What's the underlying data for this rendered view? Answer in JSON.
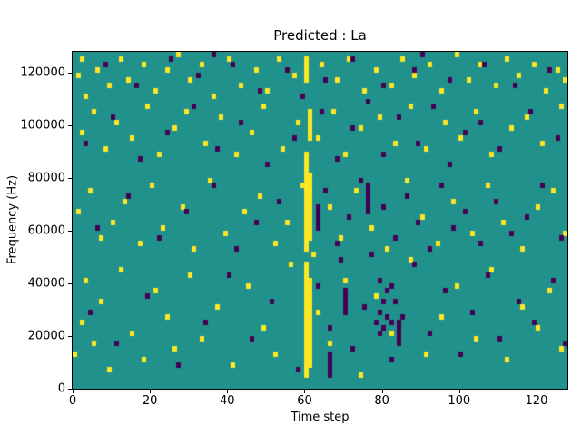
{
  "chart_data": {
    "type": "heatmap",
    "title": "Predicted : La",
    "xlabel": "Time step",
    "ylabel": "Frequency (Hz)",
    "x_range": [
      0,
      128
    ],
    "y_range": [
      0,
      128000
    ],
    "x_ticks": [
      0,
      20,
      40,
      60,
      80,
      100,
      120
    ],
    "y_ticks": [
      0,
      20000,
      40000,
      60000,
      80000,
      100000,
      120000
    ],
    "grid_cols": 128,
    "grid_rows": 64,
    "colors": {
      "background": "#21918c",
      "high": "#fde725",
      "low": "#440154",
      "axis": "#000000"
    },
    "cells": {
      "yellow": [
        [
          1,
          59
        ],
        [
          2,
          62
        ],
        [
          3,
          55
        ],
        [
          6,
          60
        ],
        [
          9,
          57
        ],
        [
          12,
          62
        ],
        [
          14,
          58
        ],
        [
          18,
          61
        ],
        [
          21,
          56
        ],
        [
          24,
          60
        ],
        [
          27,
          63
        ],
        [
          30,
          58
        ],
        [
          33,
          61
        ],
        [
          36,
          55
        ],
        [
          40,
          62
        ],
        [
          43,
          57
        ],
        [
          47,
          60
        ],
        [
          50,
          56
        ],
        [
          53,
          62
        ],
        [
          57,
          59
        ],
        [
          64,
          61
        ],
        [
          68,
          58
        ],
        [
          71,
          62
        ],
        [
          75,
          56
        ],
        [
          78,
          60
        ],
        [
          82,
          57
        ],
        [
          85,
          62
        ],
        [
          88,
          59
        ],
        [
          92,
          61
        ],
        [
          95,
          56
        ],
        [
          99,
          63
        ],
        [
          102,
          58
        ],
        [
          105,
          61
        ],
        [
          109,
          57
        ],
        [
          112,
          62
        ],
        [
          115,
          59
        ],
        [
          119,
          61
        ],
        [
          122,
          56
        ],
        [
          125,
          60
        ],
        [
          127,
          58
        ],
        [
          2,
          48
        ],
        [
          5,
          52
        ],
        [
          8,
          45
        ],
        [
          11,
          50
        ],
        [
          15,
          47
        ],
        [
          19,
          53
        ],
        [
          22,
          44
        ],
        [
          26,
          49
        ],
        [
          29,
          52
        ],
        [
          34,
          46
        ],
        [
          38,
          51
        ],
        [
          42,
          44
        ],
        [
          46,
          48
        ],
        [
          49,
          53
        ],
        [
          54,
          45
        ],
        [
          58,
          50
        ],
        [
          63,
          47
        ],
        [
          67,
          52
        ],
        [
          70,
          44
        ],
        [
          74,
          49
        ],
        [
          79,
          51
        ],
        [
          83,
          46
        ],
        [
          87,
          53
        ],
        [
          91,
          45
        ],
        [
          96,
          50
        ],
        [
          100,
          47
        ],
        [
          104,
          52
        ],
        [
          108,
          44
        ],
        [
          113,
          49
        ],
        [
          117,
          51
        ],
        [
          121,
          46
        ],
        [
          126,
          53
        ],
        [
          1,
          33
        ],
        [
          4,
          37
        ],
        [
          7,
          28
        ],
        [
          10,
          31
        ],
        [
          13,
          35
        ],
        [
          17,
          27
        ],
        [
          20,
          38
        ],
        [
          23,
          30
        ],
        [
          28,
          34
        ],
        [
          31,
          26
        ],
        [
          35,
          39
        ],
        [
          39,
          29
        ],
        [
          44,
          33
        ],
        [
          48,
          36
        ],
        [
          52,
          27
        ],
        [
          55,
          31
        ],
        [
          59,
          38
        ],
        [
          62,
          25
        ],
        [
          66,
          34
        ],
        [
          69,
          28
        ],
        [
          73,
          37
        ],
        [
          77,
          30
        ],
        [
          81,
          26
        ],
        [
          86,
          39
        ],
        [
          90,
          32
        ],
        [
          94,
          27
        ],
        [
          98,
          35
        ],
        [
          103,
          29
        ],
        [
          107,
          38
        ],
        [
          111,
          31
        ],
        [
          116,
          26
        ],
        [
          120,
          34
        ],
        [
          124,
          37
        ],
        [
          127,
          29
        ],
        [
          0,
          6
        ],
        [
          2,
          12
        ],
        [
          3,
          20
        ],
        [
          5,
          8
        ],
        [
          7,
          16
        ],
        [
          9,
          3
        ],
        [
          12,
          22
        ],
        [
          15,
          10
        ],
        [
          18,
          5
        ],
        [
          21,
          18
        ],
        [
          24,
          13
        ],
        [
          26,
          7
        ],
        [
          30,
          21
        ],
        [
          33,
          9
        ],
        [
          37,
          15
        ],
        [
          41,
          4
        ],
        [
          45,
          19
        ],
        [
          49,
          11
        ],
        [
          52,
          6
        ],
        [
          56,
          23
        ],
        [
          63,
          14
        ],
        [
          66,
          8
        ],
        [
          70,
          20
        ],
        [
          74,
          2
        ],
        [
          78,
          17
        ],
        [
          82,
          10
        ],
        [
          87,
          24
        ],
        [
          91,
          6
        ],
        [
          95,
          13
        ],
        [
          99,
          19
        ],
        [
          104,
          9
        ],
        [
          108,
          22
        ],
        [
          112,
          5
        ],
        [
          116,
          15
        ],
        [
          120,
          11
        ],
        [
          123,
          18
        ],
        [
          126,
          7
        ]
      ],
      "purple": [
        [
          8,
          61
        ],
        [
          16,
          57
        ],
        [
          25,
          62
        ],
        [
          32,
          59
        ],
        [
          41,
          61
        ],
        [
          48,
          56
        ],
        [
          55,
          60
        ],
        [
          65,
          58
        ],
        [
          72,
          62
        ],
        [
          80,
          57
        ],
        [
          88,
          60
        ],
        [
          97,
          58
        ],
        [
          106,
          61
        ],
        [
          114,
          57
        ],
        [
          123,
          60
        ],
        [
          36,
          63
        ],
        [
          90,
          63
        ],
        [
          59,
          55
        ],
        [
          3,
          46
        ],
        [
          10,
          51
        ],
        [
          17,
          43
        ],
        [
          24,
          48
        ],
        [
          31,
          53
        ],
        [
          37,
          45
        ],
        [
          43,
          50
        ],
        [
          50,
          42
        ],
        [
          57,
          47
        ],
        [
          64,
          52
        ],
        [
          68,
          43
        ],
        [
          72,
          49
        ],
        [
          76,
          54
        ],
        [
          80,
          44
        ],
        [
          84,
          51
        ],
        [
          89,
          46
        ],
        [
          93,
          53
        ],
        [
          97,
          42
        ],
        [
          101,
          48
        ],
        [
          105,
          50
        ],
        [
          110,
          45
        ],
        [
          118,
          52
        ],
        [
          125,
          47
        ],
        [
          6,
          30
        ],
        [
          14,
          36
        ],
        [
          22,
          28
        ],
        [
          29,
          33
        ],
        [
          36,
          38
        ],
        [
          42,
          26
        ],
        [
          47,
          31
        ],
        [
          53,
          35
        ],
        [
          65,
          37
        ],
        [
          68,
          27
        ],
        [
          71,
          32
        ],
        [
          74,
          39
        ],
        [
          77,
          25
        ],
        [
          80,
          34
        ],
        [
          83,
          28
        ],
        [
          86,
          36
        ],
        [
          89,
          31
        ],
        [
          92,
          26
        ],
        [
          95,
          38
        ],
        [
          98,
          30
        ],
        [
          101,
          33
        ],
        [
          105,
          27
        ],
        [
          109,
          35
        ],
        [
          113,
          29
        ],
        [
          117,
          32
        ],
        [
          121,
          38
        ],
        [
          126,
          28
        ],
        [
          4,
          14
        ],
        [
          11,
          8
        ],
        [
          19,
          17
        ],
        [
          27,
          4
        ],
        [
          34,
          12
        ],
        [
          40,
          21
        ],
        [
          46,
          9
        ],
        [
          51,
          16
        ],
        [
          58,
          3
        ],
        [
          63,
          19
        ],
        [
          66,
          11
        ],
        [
          69,
          24
        ],
        [
          72,
          7
        ],
        [
          75,
          15
        ],
        [
          79,
          20
        ],
        [
          82,
          5
        ],
        [
          85,
          13
        ],
        [
          88,
          23
        ],
        [
          92,
          10
        ],
        [
          96,
          18
        ],
        [
          100,
          6
        ],
        [
          103,
          14
        ],
        [
          107,
          21
        ],
        [
          110,
          9
        ],
        [
          115,
          16
        ],
        [
          119,
          12
        ],
        [
          124,
          20
        ],
        [
          127,
          8
        ],
        [
          78,
          12
        ],
        [
          79,
          10
        ],
        [
          80,
          11
        ],
        [
          81,
          13
        ],
        [
          82,
          12
        ],
        [
          80,
          16
        ],
        [
          81,
          18
        ],
        [
          79,
          14
        ],
        [
          83,
          16
        ],
        [
          82,
          19
        ]
      ]
    },
    "runs": {
      "yellow": [
        {
          "x": 60,
          "y0": 2,
          "y1": 23
        },
        {
          "x": 60,
          "y0": 26,
          "y1": 44
        },
        {
          "x": 61,
          "y0": 4,
          "y1": 20
        },
        {
          "x": 61,
          "y0": 28,
          "y1": 40
        },
        {
          "x": 60,
          "y0": 58,
          "y1": 62
        },
        {
          "x": 61,
          "y0": 47,
          "y1": 52
        }
      ],
      "purple": [
        {
          "x": 66,
          "y0": 2,
          "y1": 6
        },
        {
          "x": 76,
          "y0": 33,
          "y1": 38
        },
        {
          "x": 84,
          "y0": 8,
          "y1": 12
        },
        {
          "x": 63,
          "y0": 30,
          "y1": 34
        },
        {
          "x": 70,
          "y0": 14,
          "y1": 18
        }
      ]
    }
  }
}
